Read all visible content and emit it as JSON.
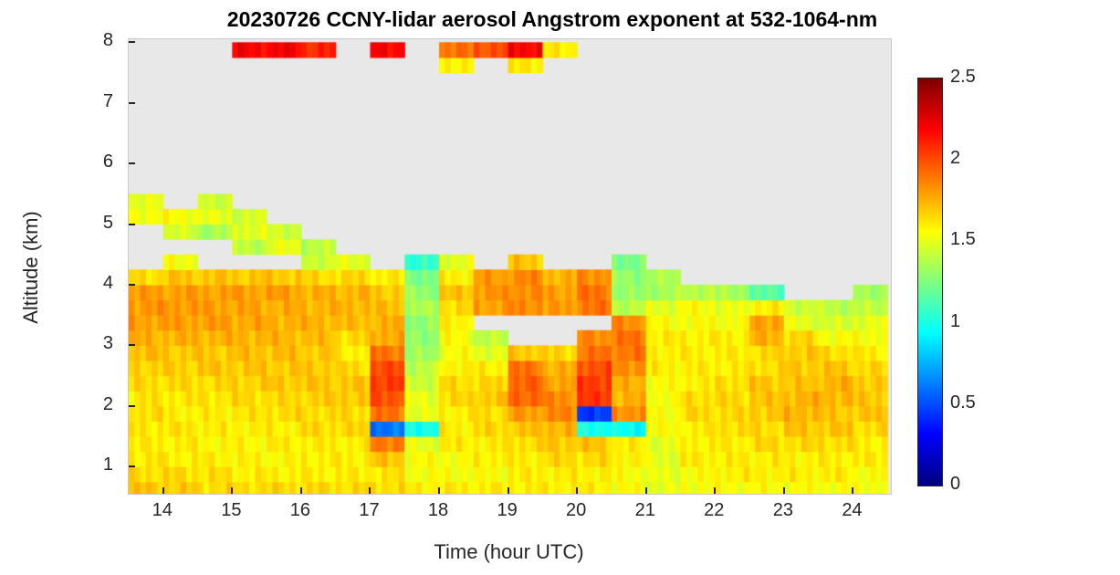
{
  "title": "20230726 CCNY-lidar aerosol Angstrom exponent at 532-1064-nm",
  "chart_data": {
    "type": "heatmap",
    "xlabel": "Time (hour UTC)",
    "ylabel": "Altitude (km)",
    "xlim": [
      13.5,
      24.55
    ],
    "ylim": [
      0.55,
      8.05
    ],
    "x_ticks": [
      14,
      15,
      16,
      17,
      18,
      19,
      20,
      21,
      22,
      23,
      24
    ],
    "y_ticks": [
      1,
      2,
      3,
      4,
      5,
      6,
      7,
      8
    ],
    "colorbar": {
      "min": 0,
      "max": 2.5,
      "ticks": [
        0,
        0.5,
        1,
        1.5,
        2,
        2.5
      ],
      "colormap": "jet"
    },
    "no_data_color": "#e8e8e8",
    "grid": {
      "t0": 13.5,
      "dt": 0.5,
      "alt0": 0.5,
      "dalt": 0.25,
      "columns": [
        [
          1.7,
          1.65,
          1.62,
          1.6,
          1.62,
          1.65,
          1.62,
          1.65,
          1.68,
          1.72,
          1.75,
          1.8,
          1.82,
          1.8,
          1.65,
          null,
          null,
          null,
          1.55,
          1.5,
          null,
          null,
          null,
          null,
          null,
          null,
          null,
          null,
          null,
          null
        ],
        [
          1.68,
          1.65,
          1.6,
          1.6,
          1.62,
          1.6,
          1.62,
          1.65,
          1.68,
          1.7,
          1.75,
          1.8,
          1.82,
          1.8,
          1.7,
          1.55,
          null,
          1.45,
          1.55,
          null,
          null,
          null,
          null,
          null,
          null,
          null,
          null,
          null,
          null,
          null
        ],
        [
          1.65,
          1.63,
          1.6,
          1.58,
          1.6,
          1.6,
          1.63,
          1.65,
          1.7,
          1.7,
          1.75,
          1.8,
          1.8,
          1.8,
          1.7,
          null,
          null,
          1.35,
          1.5,
          1.45,
          null,
          null,
          null,
          null,
          null,
          null,
          null,
          null,
          null,
          null
        ],
        [
          1.65,
          1.6,
          1.58,
          1.58,
          1.6,
          1.62,
          1.65,
          1.68,
          1.7,
          1.72,
          1.75,
          1.78,
          1.78,
          1.8,
          1.7,
          null,
          1.4,
          1.5,
          1.45,
          null,
          null,
          null,
          null,
          null,
          null,
          null,
          null,
          null,
          null,
          2.2
        ],
        [
          1.65,
          1.6,
          1.57,
          1.6,
          1.6,
          1.65,
          1.65,
          1.7,
          1.7,
          1.72,
          1.74,
          1.76,
          1.76,
          1.8,
          1.7,
          null,
          1.5,
          1.45,
          null,
          null,
          null,
          null,
          null,
          null,
          null,
          null,
          null,
          null,
          null,
          2.2
        ],
        [
          1.65,
          1.6,
          1.6,
          1.6,
          1.65,
          1.65,
          1.68,
          1.7,
          1.7,
          1.7,
          1.72,
          1.75,
          1.75,
          1.75,
          1.65,
          1.45,
          1.4,
          null,
          null,
          null,
          null,
          null,
          null,
          null,
          null,
          null,
          null,
          null,
          null,
          2.1
        ],
        [
          1.65,
          1.6,
          1.6,
          1.6,
          1.65,
          1.65,
          1.7,
          1.7,
          1.65,
          1.6,
          1.65,
          1.72,
          1.75,
          1.75,
          1.65,
          1.5,
          null,
          null,
          null,
          null,
          null,
          null,
          null,
          null,
          null,
          null,
          null,
          null,
          null,
          null
        ],
        [
          1.65,
          1.62,
          1.7,
          1.9,
          0.6,
          1.9,
          2.0,
          2.05,
          2.0,
          1.9,
          1.78,
          1.75,
          1.72,
          1.7,
          1.6,
          null,
          null,
          null,
          null,
          null,
          null,
          null,
          null,
          null,
          null,
          null,
          null,
          null,
          null,
          2.2
        ],
        [
          1.6,
          1.55,
          1.55,
          1.5,
          1.0,
          1.5,
          1.5,
          1.45,
          1.4,
          1.32,
          1.3,
          1.3,
          1.35,
          1.3,
          1.25,
          1.05,
          null,
          null,
          null,
          null,
          null,
          null,
          null,
          null,
          null,
          null,
          null,
          null,
          null,
          null
        ],
        [
          1.6,
          1.55,
          1.55,
          1.6,
          1.6,
          1.6,
          1.65,
          1.65,
          1.6,
          1.55,
          1.55,
          1.6,
          1.65,
          1.7,
          1.6,
          1.5,
          null,
          null,
          null,
          null,
          null,
          null,
          null,
          null,
          null,
          null,
          null,
          null,
          1.6,
          1.9
        ],
        [
          1.6,
          1.55,
          1.6,
          1.6,
          1.65,
          1.65,
          1.7,
          1.65,
          1.6,
          1.5,
          1.4,
          null,
          1.8,
          1.82,
          1.8,
          null,
          null,
          null,
          null,
          null,
          null,
          null,
          null,
          null,
          null,
          null,
          null,
          null,
          null,
          2.0
        ],
        [
          1.6,
          1.6,
          1.6,
          1.65,
          1.7,
          1.8,
          1.95,
          1.95,
          1.9,
          1.7,
          null,
          null,
          1.85,
          1.85,
          1.85,
          1.7,
          null,
          null,
          null,
          null,
          null,
          null,
          null,
          null,
          null,
          null,
          null,
          null,
          1.6,
          2.2
        ],
        [
          1.6,
          1.6,
          1.65,
          1.7,
          1.75,
          1.85,
          1.85,
          1.8,
          1.75,
          1.65,
          null,
          null,
          1.8,
          1.8,
          1.75,
          null,
          null,
          null,
          null,
          null,
          null,
          null,
          null,
          null,
          null,
          null,
          null,
          null,
          null,
          1.6
        ],
        [
          1.6,
          1.6,
          1.65,
          1.7,
          1.0,
          0.45,
          2.05,
          2.05,
          2.0,
          1.9,
          1.85,
          null,
          1.9,
          1.9,
          1.85,
          null,
          null,
          null,
          null,
          null,
          null,
          null,
          null,
          null,
          null,
          null,
          null,
          null,
          null,
          null
        ],
        [
          1.55,
          1.55,
          1.6,
          1.6,
          0.95,
          1.85,
          1.75,
          1.75,
          1.85,
          1.9,
          1.9,
          1.85,
          1.4,
          1.3,
          1.3,
          1.25,
          null,
          null,
          null,
          null,
          null,
          null,
          null,
          null,
          null,
          null,
          null,
          null,
          null,
          null
        ],
        [
          1.5,
          1.5,
          1.5,
          1.5,
          1.55,
          1.55,
          1.55,
          1.55,
          1.6,
          1.6,
          1.6,
          1.55,
          1.5,
          1.35,
          1.35,
          null,
          null,
          null,
          null,
          null,
          null,
          null,
          null,
          null,
          null,
          null,
          null,
          null,
          null,
          null
        ],
        [
          1.55,
          1.55,
          1.6,
          1.6,
          1.6,
          1.65,
          1.65,
          1.6,
          1.6,
          1.6,
          1.6,
          1.55,
          1.55,
          1.4,
          null,
          null,
          null,
          null,
          null,
          null,
          null,
          null,
          null,
          null,
          null,
          null,
          null,
          null,
          null,
          null
        ],
        [
          1.55,
          1.6,
          1.6,
          1.6,
          1.65,
          1.65,
          1.65,
          1.65,
          1.6,
          1.6,
          1.6,
          1.55,
          1.5,
          1.35,
          null,
          null,
          null,
          null,
          null,
          null,
          null,
          null,
          null,
          null,
          null,
          null,
          null,
          null,
          null,
          null
        ],
        [
          1.55,
          1.6,
          1.6,
          1.65,
          1.65,
          1.7,
          1.7,
          1.7,
          1.65,
          1.65,
          1.75,
          1.8,
          1.6,
          1.15,
          null,
          null,
          null,
          null,
          null,
          null,
          null,
          null,
          null,
          null,
          null,
          null,
          null,
          null,
          null,
          null
        ],
        [
          1.55,
          1.6,
          1.6,
          1.65,
          1.7,
          1.75,
          1.75,
          1.7,
          1.7,
          1.7,
          1.65,
          1.5,
          1.45,
          null,
          null,
          null,
          null,
          null,
          null,
          null,
          null,
          null,
          null,
          null,
          null,
          null,
          null,
          null,
          null,
          null
        ],
        [
          1.55,
          1.6,
          1.6,
          1.65,
          1.7,
          1.7,
          1.75,
          1.75,
          1.7,
          1.65,
          1.55,
          1.45,
          1.4,
          null,
          null,
          null,
          null,
          null,
          null,
          null,
          null,
          null,
          null,
          null,
          null,
          null,
          null,
          null,
          null,
          null
        ],
        [
          1.55,
          1.55,
          1.6,
          1.6,
          1.65,
          1.7,
          1.7,
          1.7,
          1.65,
          1.6,
          1.55,
          1.5,
          1.4,
          1.35,
          null,
          null,
          null,
          null,
          null,
          null,
          null,
          null,
          null,
          null,
          null,
          null,
          null,
          null,
          null,
          null
        ]
      ]
    }
  }
}
